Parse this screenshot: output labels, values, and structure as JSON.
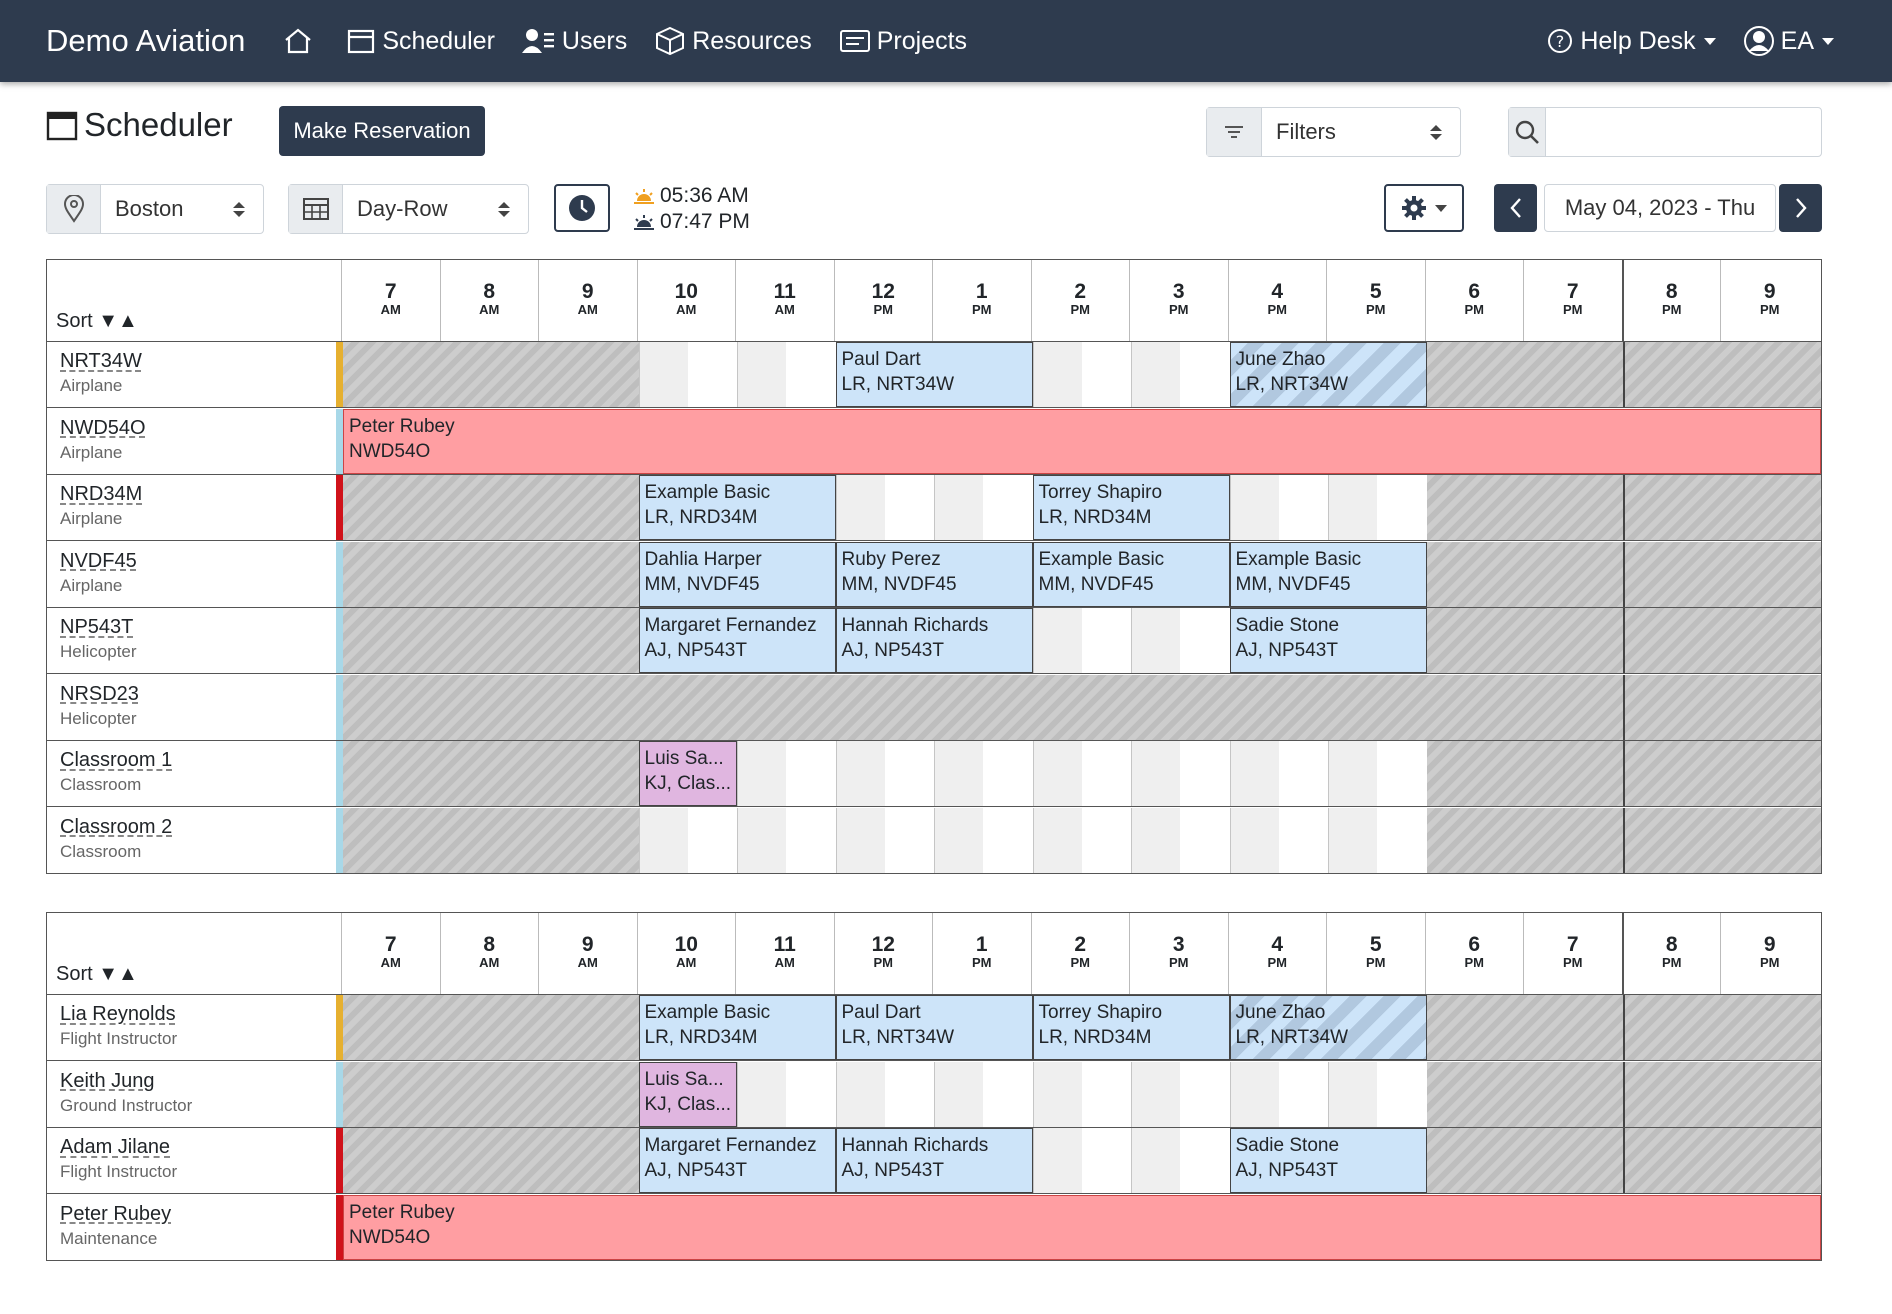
{
  "nav": {
    "brand": "Demo Aviation",
    "items": [
      {
        "label": "",
        "icon": "home-icon"
      },
      {
        "label": "Scheduler",
        "icon": "calendar-icon"
      },
      {
        "label": "Users",
        "icon": "users-icon"
      },
      {
        "label": "Resources",
        "icon": "box-icon"
      },
      {
        "label": "Projects",
        "icon": "projects-icon"
      }
    ],
    "help_desk": "Help Desk",
    "user": "EA"
  },
  "toolbar": {
    "title": "Scheduler",
    "make_reservation": "Make Reservation",
    "filters": "Filters",
    "search_placeholder": "",
    "location": "Boston",
    "view": "Day-Row",
    "sunrise": "05:36 AM",
    "sunset": "07:47 PM",
    "date": "May 04, 2023 - Thu"
  },
  "hours": [
    {
      "n": "7",
      "p": "AM"
    },
    {
      "n": "8",
      "p": "AM"
    },
    {
      "n": "9",
      "p": "AM"
    },
    {
      "n": "10",
      "p": "AM"
    },
    {
      "n": "11",
      "p": "AM"
    },
    {
      "n": "12",
      "p": "PM"
    },
    {
      "n": "1",
      "p": "PM"
    },
    {
      "n": "2",
      "p": "PM"
    },
    {
      "n": "3",
      "p": "PM"
    },
    {
      "n": "4",
      "p": "PM"
    },
    {
      "n": "5",
      "p": "PM"
    },
    {
      "n": "6",
      "p": "PM"
    },
    {
      "n": "7",
      "p": "PM"
    },
    {
      "n": "8",
      "p": "PM"
    },
    {
      "n": "9",
      "p": "PM"
    }
  ],
  "sort_label": "Sort ▼▲",
  "colors": {
    "nav": "#2e3b4e",
    "appt_blue": "#cde4f9",
    "appt_red": "#ff9ea2",
    "appt_purple": "#e0b6e0",
    "stripe_gold": "#e6b030",
    "stripe_red": "#d0121a",
    "stripe_blue": "#a8d8e8"
  },
  "resources": [
    {
      "name": "NRT34W",
      "type": "Airplane",
      "stripe": "gold",
      "appts": [
        {
          "start": 12,
          "end": 14,
          "line1": "Paul Dart",
          "line2": "LR, NRT34W",
          "style": "blue"
        },
        {
          "start": 16,
          "end": 18,
          "line1": "June Zhao",
          "line2": "LR, NRT34W",
          "style": "striped"
        }
      ]
    },
    {
      "name": "NWD54O",
      "type": "Airplane",
      "stripe": "blue",
      "appts": [
        {
          "start": 7,
          "end": 22,
          "line1": "Peter Rubey",
          "line2": "NWD54O",
          "style": "pink"
        }
      ]
    },
    {
      "name": "NRD34M",
      "type": "Airplane",
      "stripe": "red",
      "appts": [
        {
          "start": 10,
          "end": 12,
          "line1": "Example Basic",
          "line2": "LR, NRD34M",
          "style": "blue"
        },
        {
          "start": 14,
          "end": 16,
          "line1": "Torrey Shapiro",
          "line2": "LR, NRD34M",
          "style": "blue"
        }
      ]
    },
    {
      "name": "NVDF45",
      "type": "Airplane",
      "stripe": "blue",
      "appts": [
        {
          "start": 10,
          "end": 12,
          "line1": "Dahlia Harper",
          "line2": "MM, NVDF45",
          "style": "blue"
        },
        {
          "start": 12,
          "end": 14,
          "line1": "Ruby Perez",
          "line2": "MM, NVDF45",
          "style": "blue"
        },
        {
          "start": 14,
          "end": 16,
          "line1": "Example Basic",
          "line2": "MM, NVDF45",
          "style": "blue"
        },
        {
          "start": 16,
          "end": 18,
          "line1": "Example Basic",
          "line2": "MM, NVDF45",
          "style": "blue"
        }
      ]
    },
    {
      "name": "NP543T",
      "type": "Helicopter",
      "stripe": "blue",
      "appts": [
        {
          "start": 10,
          "end": 12,
          "line1": "Margaret Fernandez",
          "line2": "AJ, NP543T",
          "style": "blue"
        },
        {
          "start": 12,
          "end": 14,
          "line1": "Hannah Richards",
          "line2": "AJ, NP543T",
          "style": "blue"
        },
        {
          "start": 16,
          "end": 18,
          "line1": "Sadie Stone",
          "line2": "AJ, NP543T",
          "style": "blue"
        }
      ]
    },
    {
      "name": "NRSD23",
      "type": "Helicopter",
      "stripe": "blue",
      "closed": true,
      "appts": []
    },
    {
      "name": "Classroom 1",
      "type": "Classroom",
      "stripe": "blue",
      "appts": [
        {
          "start": 10,
          "end": 11,
          "line1": "Luis Sa...",
          "line2": "KJ, Clas...",
          "style": "lav"
        }
      ]
    },
    {
      "name": "Classroom 2",
      "type": "Classroom",
      "stripe": "blue",
      "appts": []
    }
  ],
  "people": [
    {
      "name": "Lia Reynolds",
      "type": "Flight Instructor",
      "stripe": "gold",
      "appts": [
        {
          "start": 10,
          "end": 12,
          "line1": "Example Basic",
          "line2": "LR, NRD34M",
          "style": "blue"
        },
        {
          "start": 12,
          "end": 14,
          "line1": "Paul Dart",
          "line2": "LR, NRT34W",
          "style": "blue"
        },
        {
          "start": 14,
          "end": 16,
          "line1": "Torrey Shapiro",
          "line2": "LR, NRD34M",
          "style": "blue"
        },
        {
          "start": 16,
          "end": 18,
          "line1": "June Zhao",
          "line2": "LR, NRT34W",
          "style": "striped"
        }
      ]
    },
    {
      "name": "Keith Jung",
      "type": "Ground Instructor",
      "stripe": "blue",
      "appts": [
        {
          "start": 10,
          "end": 11,
          "line1": "Luis Sa...",
          "line2": "KJ, Clas...",
          "style": "lav"
        }
      ]
    },
    {
      "name": "Adam Jilane",
      "type": "Flight Instructor",
      "stripe": "red",
      "appts": [
        {
          "start": 10,
          "end": 12,
          "line1": "Margaret Fernandez",
          "line2": "AJ, NP543T",
          "style": "blue"
        },
        {
          "start": 12,
          "end": 14,
          "line1": "Hannah Richards",
          "line2": "AJ, NP543T",
          "style": "blue"
        },
        {
          "start": 16,
          "end": 18,
          "line1": "Sadie Stone",
          "line2": "AJ, NP543T",
          "style": "blue"
        }
      ]
    },
    {
      "name": "Peter Rubey",
      "type": "Maintenance",
      "stripe": "red",
      "appts": [
        {
          "start": 7,
          "end": 22,
          "line1": "Peter Rubey",
          "line2": "NWD54O",
          "style": "pink"
        }
      ]
    }
  ]
}
